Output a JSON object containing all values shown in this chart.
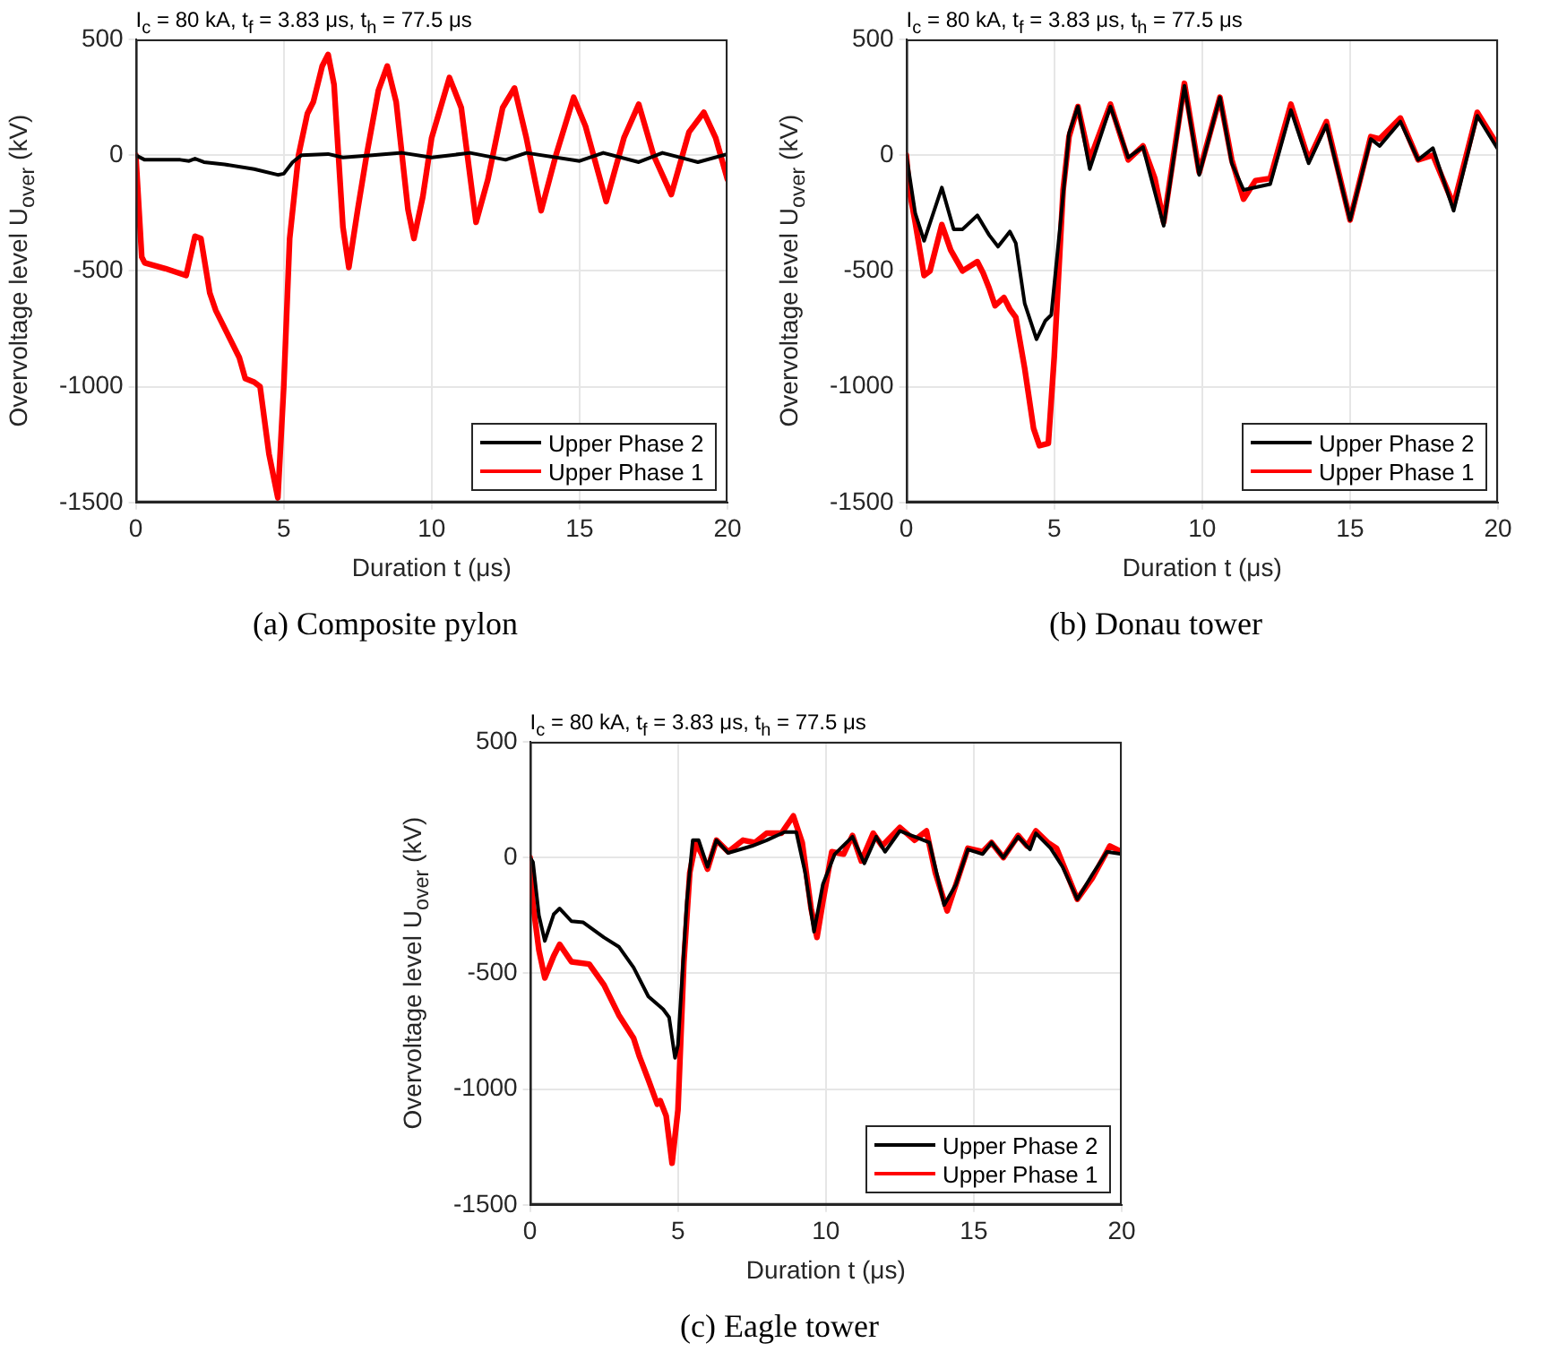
{
  "chart_data": [
    {
      "type": "line",
      "title": "I$_{c}$ = 80 kA, t$_{f}$ = 3.83 μs, t$_{h}$ = 77.5 μs",
      "xlabel": "Duration t (μs)",
      "ylabel": "Overvoltage level U$_{over}$ (kV)",
      "xlim": [
        0,
        20
      ],
      "xticks": [
        0,
        5,
        10,
        15,
        20
      ],
      "ylim": [
        -1500,
        500
      ],
      "yticks": [
        -1500,
        -1000,
        -500,
        0,
        500
      ],
      "grid": true,
      "legend": "bottom right",
      "marker": "none",
      "annotations": [
        "(a)  Composite pylon"
      ],
      "series": [
        {
          "name": "Upper Phase 2",
          "color": "#000000",
          "x": [
            0,
            0.3,
            1.5,
            1.8,
            2.0,
            2.3,
            3.0,
            4.0,
            4.8,
            5.0,
            5.3,
            5.6,
            6.5,
            7.0,
            8.0,
            9.0,
            10.0,
            11.3,
            12.5,
            13.2,
            15.0,
            15.8,
            17.0,
            17.8,
            19.0,
            20
          ],
          "values": [
            0,
            -20,
            -20,
            -25,
            -15,
            -30,
            -40,
            -60,
            -85,
            -80,
            -30,
            0,
            5,
            -10,
            0,
            10,
            -10,
            10,
            -20,
            10,
            -25,
            10,
            -30,
            10,
            -30,
            5
          ]
        },
        {
          "name": "Upper Phase 1",
          "color": "#ff0000",
          "x": [
            0,
            0.2,
            0.3,
            1.0,
            1.7,
            2.0,
            2.2,
            2.5,
            2.7,
            3.5,
            3.7,
            4.0,
            4.2,
            4.5,
            4.8,
            5.0,
            5.2,
            5.5,
            5.8,
            6.0,
            6.3,
            6.5,
            6.7,
            7.0,
            7.2,
            7.5,
            7.8,
            8.2,
            8.5,
            8.8,
            9.2,
            9.4,
            9.7,
            10.0,
            10.6,
            11.0,
            11.5,
            11.9,
            12.4,
            12.8,
            13.2,
            13.7,
            14.2,
            14.8,
            15.2,
            15.9,
            16.5,
            17.0,
            17.5,
            18.1,
            18.7,
            19.2,
            19.6,
            20
          ],
          "values": [
            0,
            -440,
            -465,
            -490,
            -520,
            -350,
            -360,
            -595,
            -670,
            -875,
            -965,
            -980,
            -1000,
            -1290,
            -1480,
            -1000,
            -360,
            0,
            180,
            230,
            385,
            435,
            305,
            -310,
            -485,
            -235,
            0,
            280,
            385,
            230,
            -235,
            -360,
            -180,
            75,
            335,
            205,
            -290,
            -105,
            205,
            290,
            75,
            -240,
            0,
            250,
            125,
            -200,
            75,
            220,
            0,
            -170,
            100,
            185,
            75,
            -105
          ]
        }
      ]
    },
    {
      "type": "line",
      "title": "I$_{c}$ = 80 kA, t$_{f}$ = 3.83 μs, t$_{h}$ = 77.5 μs",
      "xlabel": "Duration t (μs)",
      "ylabel": "Overvoltage level U$_{over}$ (kV)",
      "xlim": [
        0,
        20
      ],
      "xticks": [
        0,
        5,
        10,
        15,
        20
      ],
      "ylim": [
        -1500,
        500
      ],
      "yticks": [
        -1500,
        -1000,
        -500,
        0,
        500
      ],
      "grid": true,
      "legend": "bottom right",
      "marker": "none",
      "annotations": [
        "(b)  Donau tower"
      ],
      "series": [
        {
          "name": "Upper Phase 2",
          "color": "#000000",
          "x": [
            0,
            0.3,
            0.6,
            1.2,
            1.6,
            1.9,
            2.4,
            2.8,
            3.1,
            3.5,
            3.7,
            4.0,
            4.4,
            4.7,
            4.9,
            5.2,
            5.5,
            5.8,
            6.2,
            6.9,
            7.5,
            8.0,
            8.7,
            9.4,
            9.9,
            10.6,
            11.0,
            11.4,
            12.3,
            13.0,
            13.6,
            14.2,
            15.0,
            15.7,
            16.0,
            16.7,
            17.3,
            17.8,
            18.5,
            19.3,
            20
          ],
          "values": [
            0,
            -250,
            -370,
            -140,
            -320,
            -320,
            -260,
            -345,
            -395,
            -330,
            -380,
            -640,
            -795,
            -715,
            -690,
            -305,
            95,
            210,
            -60,
            210,
            -10,
            35,
            -305,
            300,
            -85,
            250,
            -35,
            -150,
            -125,
            195,
            -35,
            130,
            -280,
            70,
            40,
            145,
            -20,
            30,
            -240,
            170,
            25
          ]
        },
        {
          "name": "Upper Phase 1",
          "color": "#ff0000",
          "x": [
            0,
            0.1,
            0.3,
            0.6,
            0.8,
            1.2,
            1.5,
            1.9,
            2.4,
            2.6,
            2.8,
            3.0,
            3.3,
            3.5,
            3.7,
            4.0,
            4.3,
            4.5,
            4.8,
            5.0,
            5.3,
            5.5,
            5.8,
            6.2,
            6.9,
            7.5,
            8.0,
            8.4,
            8.7,
            9.4,
            9.9,
            10.6,
            11.0,
            11.4,
            11.8,
            12.3,
            13.0,
            13.6,
            14.2,
            15.0,
            15.7,
            16.0,
            16.7,
            17.3,
            17.8,
            18.5,
            19.3,
            20
          ],
          "values": [
            0,
            -150,
            -290,
            -520,
            -500,
            -300,
            -410,
            -500,
            -460,
            -510,
            -575,
            -650,
            -615,
            -665,
            -700,
            -920,
            -1180,
            -1255,
            -1245,
            -870,
            -150,
            80,
            210,
            -20,
            220,
            -20,
            40,
            -100,
            -290,
            310,
            -75,
            250,
            -20,
            -190,
            -110,
            -100,
            220,
            -20,
            145,
            -280,
            80,
            70,
            160,
            -20,
            0,
            -215,
            185,
            40
          ]
        }
      ]
    },
    {
      "type": "line",
      "title": "I$_{c}$ = 80 kA, t$_{f}$ = 3.83 μs, t$_{h}$ = 77.5 μs",
      "xlabel": "Duration t (μs)",
      "ylabel": "Overvoltage level U$_{over}$ (kV)",
      "xlim": [
        0,
        20
      ],
      "xticks": [
        0,
        5,
        10,
        15,
        20
      ],
      "ylim": [
        -1500,
        500
      ],
      "yticks": [
        -1500,
        -1000,
        -500,
        0,
        500
      ],
      "grid": true,
      "legend": "bottom right",
      "marker": "none",
      "annotations": [
        "(c)  Eagle tower"
      ],
      "series": [
        {
          "name": "Upper Phase 2",
          "color": "#000000",
          "x": [
            0,
            0.1,
            0.3,
            0.5,
            0.8,
            1.0,
            1.4,
            1.8,
            2.5,
            3.0,
            3.5,
            4.0,
            4.5,
            4.7,
            4.9,
            5.0,
            5.3,
            5.5,
            5.7,
            6.0,
            6.3,
            6.7,
            7.5,
            8.0,
            8.6,
            9.0,
            9.3,
            9.6,
            9.9,
            10.3,
            10.9,
            11.3,
            11.7,
            12.0,
            12.5,
            13.0,
            13.5,
            14.0,
            14.4,
            14.8,
            15.3,
            15.6,
            16.0,
            16.5,
            16.9,
            17.1,
            17.6,
            18.0,
            18.5,
            19.0,
            19.5,
            20
          ],
          "values": [
            0,
            -20,
            -250,
            -360,
            -245,
            -220,
            -275,
            -280,
            -345,
            -385,
            -475,
            -600,
            -655,
            -690,
            -865,
            -810,
            -190,
            75,
            75,
            -40,
            75,
            20,
            50,
            75,
            110,
            110,
            -65,
            -320,
            -115,
            15,
            90,
            -25,
            90,
            25,
            115,
            90,
            65,
            -205,
            -115,
            35,
            15,
            65,
            0,
            90,
            35,
            105,
            40,
            -40,
            -180,
            -75,
            25,
            15
          ]
        },
        {
          "name": "Upper Phase 1",
          "color": "#ff0000",
          "x": [
            0,
            0.1,
            0.3,
            0.5,
            0.8,
            1.0,
            1.4,
            2.0,
            2.5,
            3.0,
            3.5,
            3.7,
            4.0,
            4.3,
            4.4,
            4.6,
            4.8,
            5.0,
            5.2,
            5.4,
            5.6,
            5.8,
            6.0,
            6.3,
            6.7,
            7.2,
            7.6,
            8.0,
            8.5,
            8.9,
            9.2,
            9.5,
            9.7,
            9.9,
            10.2,
            10.6,
            10.9,
            11.2,
            11.6,
            11.9,
            12.5,
            13.0,
            13.4,
            13.7,
            14.1,
            14.4,
            14.8,
            15.3,
            15.6,
            16.0,
            16.5,
            16.8,
            17.1,
            17.5,
            17.8,
            18.5,
            19.0,
            19.6,
            20
          ],
          "values": [
            0,
            -200,
            -400,
            -520,
            -425,
            -375,
            -450,
            -460,
            -550,
            -680,
            -780,
            -860,
            -960,
            -1065,
            -1050,
            -1115,
            -1320,
            -1090,
            -450,
            -65,
            65,
            15,
            -50,
            75,
            25,
            75,
            65,
            105,
            105,
            180,
            65,
            -220,
            -345,
            -190,
            25,
            15,
            95,
            -15,
            105,
            50,
            130,
            75,
            115,
            -65,
            -230,
            -115,
            40,
            25,
            65,
            0,
            95,
            50,
            115,
            65,
            40,
            -180,
            -90,
            50,
            25
          ]
        }
      ]
    }
  ]
}
